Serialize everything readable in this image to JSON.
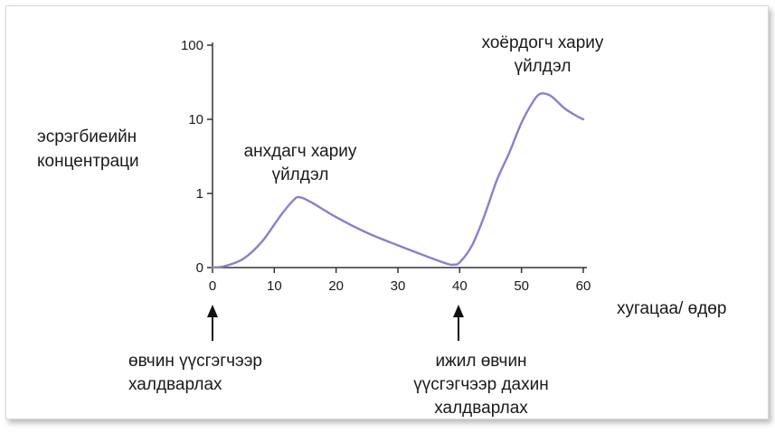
{
  "chart_data": {
    "type": "line",
    "title": "",
    "xlabel": "хугацаа/ өдөр",
    "ylabel_lines": [
      "эсрэгбиеийн",
      "концентраци"
    ],
    "x_ticks": [
      "0",
      "10",
      "20",
      "30",
      "40",
      "50",
      "60"
    ],
    "y_ticks": [
      "0",
      "1",
      "10",
      "100"
    ],
    "xlim": [
      0,
      60
    ],
    "ylim": [
      0,
      100
    ],
    "y_scale": "log",
    "grid": false,
    "series": [
      {
        "x": [
          0,
          2,
          5,
          8,
          11,
          13,
          14,
          16,
          20,
          25,
          30,
          35,
          38,
          39,
          40,
          42,
          44,
          46,
          48,
          50,
          52,
          53,
          54,
          55,
          57,
          59,
          60
        ],
        "y": [
          0,
          0.02,
          0.12,
          0.35,
          0.7,
          0.9,
          0.95,
          0.88,
          0.68,
          0.47,
          0.3,
          0.14,
          0.05,
          0.04,
          0.07,
          0.3,
          0.7,
          1.5,
          3.5,
          9,
          18,
          22,
          22,
          20,
          14,
          11,
          10
        ]
      }
    ],
    "annotations": [
      {
        "lines": [
          "анхдагч хариу",
          "үйлдэл"
        ],
        "x": 14
      },
      {
        "lines": [
          "хоёрдогч хариу",
          "үйлдэл"
        ],
        "x": 54
      }
    ],
    "events": [
      {
        "x": 0,
        "lines": [
          "өвчин үүсгэгчээр",
          "халдварлах"
        ]
      },
      {
        "x": 40,
        "lines": [
          "ижил өвчин",
          "үүсгэгчээр дахин",
          "халдварлах"
        ]
      }
    ],
    "colors": {
      "line": "#8a7fcb",
      "axis": "#333333",
      "text": "#1a1a1a"
    }
  }
}
